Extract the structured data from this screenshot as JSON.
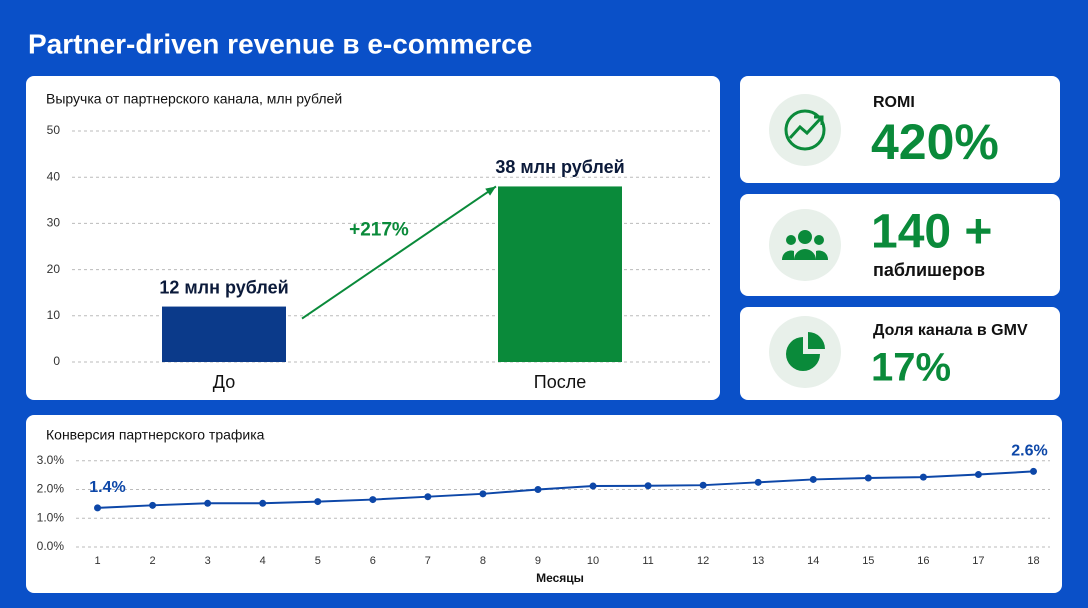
{
  "title": "Partner-driven revenue в e-commerce",
  "chart_data": [
    {
      "type": "bar",
      "title": "Выручка от партнерского канала, млн рублей",
      "categories": [
        "До",
        "После"
      ],
      "values": [
        12,
        38
      ],
      "value_labels": [
        "12 млн рублей",
        "38 млн рублей"
      ],
      "colors": [
        "#0b3a8a",
        "#0a8a3a"
      ],
      "ylim": [
        0,
        50
      ],
      "yticks": [
        0,
        10,
        20,
        30,
        40,
        50
      ],
      "grid": true,
      "annotation": "+217%"
    },
    {
      "type": "line",
      "title": "Конверсия партнерского трафика",
      "x_label": "Месяцы",
      "x": [
        1,
        2,
        3,
        4,
        5,
        6,
        7,
        8,
        9,
        10,
        11,
        12,
        13,
        14,
        15,
        16,
        17,
        18
      ],
      "values": [
        1.36,
        1.45,
        1.52,
        1.52,
        1.58,
        1.65,
        1.75,
        1.85,
        2.0,
        2.12,
        2.13,
        2.15,
        2.25,
        2.35,
        2.4,
        2.43,
        2.52,
        2.63
      ],
      "value_labels": [
        "1.4%",
        null,
        null,
        null,
        null,
        null,
        null,
        null,
        null,
        null,
        null,
        null,
        null,
        null,
        null,
        null,
        null,
        "2.6%"
      ],
      "color": "#0d47a8",
      "xlim": [
        0.5,
        18.3
      ],
      "xticks": [
        1,
        2,
        3,
        4,
        5,
        6,
        7,
        8,
        9,
        10,
        11,
        12,
        13,
        14,
        15,
        16,
        17,
        18
      ],
      "ylim": [
        0,
        3.2
      ],
      "yticks": [
        {
          "value": 0,
          "label": "0.0%"
        },
        {
          "value": 1,
          "label": "1.0%"
        },
        {
          "value": 2,
          "label": "2.0%"
        },
        {
          "value": 3,
          "label": "3.0%"
        }
      ],
      "grid": true
    }
  ],
  "kpis": [
    {
      "label": "ROMI",
      "value": "420%"
    },
    {
      "value": "140 +",
      "label": "паблишеров"
    },
    {
      "label": "Доля канала в GMV",
      "value": "17%"
    }
  ]
}
